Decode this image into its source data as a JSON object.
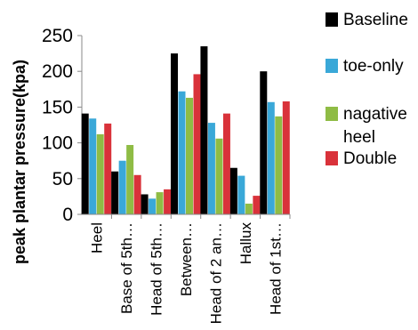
{
  "chart_data": {
    "type": "bar",
    "ylabel": "peak plantar pressure(kpa)",
    "ylim": [
      0,
      250
    ],
    "yticks": [
      "0",
      "50",
      "100",
      "150",
      "200",
      "250"
    ],
    "categories": [
      "Heel",
      "Base of 5th…",
      "Head of 5th…",
      "Between…",
      "Head of 2 an…",
      "Hallux",
      "Head of 1st…"
    ],
    "series": [
      {
        "name": "Baseline",
        "color": "#000000",
        "values": [
          141,
          60,
          28,
          225,
          235,
          65,
          200
        ]
      },
      {
        "name": "toe-only",
        "color": "#3aa8d8",
        "values": [
          134,
          75,
          22,
          172,
          128,
          54,
          157
        ]
      },
      {
        "name": "nagative heel",
        "color": "#8fbc45",
        "values": [
          112,
          97,
          31,
          163,
          106,
          15,
          137
        ]
      },
      {
        "name": "Double",
        "color": "#d9323a",
        "values": [
          127,
          55,
          35,
          196,
          141,
          26,
          158
        ]
      }
    ],
    "legend_lines": [
      [
        "Baseline"
      ],
      [
        "toe-only"
      ],
      [
        "nagative",
        "heel"
      ],
      [
        "Double"
      ]
    ],
    "legend_position": "right",
    "grid": false
  }
}
